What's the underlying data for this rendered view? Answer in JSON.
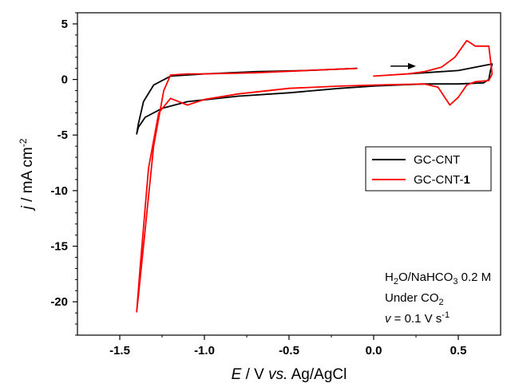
{
  "chart_data": {
    "type": "line",
    "xlim": [
      -1.75,
      0.75
    ],
    "ylim": [
      -23,
      6
    ],
    "x_ticks": [
      -1.5,
      -1.0,
      -0.5,
      0.0,
      0.5
    ],
    "x_tick_labels": [
      "-1.5",
      "-1.0",
      "-0.5",
      "0.0",
      "0.5"
    ],
    "y_ticks": [
      5,
      0,
      -5,
      -10,
      -15,
      -20
    ],
    "y_tick_labels": [
      "5",
      "0",
      "-5",
      "-10",
      "-15",
      "-20"
    ],
    "xlabel": {
      "var": "E",
      "unit": " / V ",
      "vs": "vs.",
      "ref": " Ag/AgCl"
    },
    "ylabel": {
      "var": "j",
      "unit": " / mA cm",
      "sup": "-2"
    },
    "legend": {
      "placement": "right",
      "entries": [
        {
          "label": "GC-CNT",
          "bold_suffix": "",
          "color": "#000000"
        },
        {
          "label": "GC-CNT-",
          "bold_suffix": "1",
          "color": "#ff0000"
        }
      ]
    },
    "annotations": {
      "line1_a": "H",
      "line1_sub1": "2",
      "line1_b": "O/NaHCO",
      "line1_sub2": "3",
      "line1_c": " 0.2 M",
      "line2_a": "Under CO",
      "line2_sub": "2",
      "line3_var": "v",
      "line3_b": " = 0.1 V s",
      "line3_sup": "-1"
    },
    "scan_arrow": {
      "x_start": 0.1,
      "x_end": 0.25,
      "y": 1.2
    },
    "series": [
      {
        "name": "GC-CNT",
        "color": "#000000",
        "x": [
          -0.1,
          -0.4,
          -0.7,
          -1.0,
          -1.2,
          -1.3,
          -1.36,
          -1.39,
          -1.4,
          -1.39,
          -1.35,
          -1.25,
          -1.1,
          -0.8,
          -0.5,
          -0.2,
          0.0,
          0.3,
          0.5,
          0.65,
          0.68,
          0.69,
          0.7,
          0.5,
          0.3,
          0.2
        ],
        "y": [
          1.0,
          0.8,
          0.7,
          0.5,
          0.3,
          -0.5,
          -2.0,
          -4.0,
          -4.9,
          -4.3,
          -3.4,
          -2.6,
          -2.0,
          -1.5,
          -1.2,
          -0.8,
          -0.6,
          -0.4,
          -0.4,
          -0.3,
          0.0,
          0.8,
          1.4,
          0.8,
          0.6,
          0.5
        ]
      },
      {
        "name": "GC-CNT-1",
        "color": "#ff0000",
        "x": [
          -0.1,
          -0.4,
          -0.7,
          -1.0,
          -1.1,
          -1.2,
          -1.24,
          -1.3,
          -1.36,
          -1.39,
          -1.4,
          -1.38,
          -1.33,
          -1.27,
          -1.2,
          -1.1,
          -1.0,
          -0.8,
          -0.5,
          -0.2,
          0.0,
          0.3,
          0.38,
          0.45,
          0.5,
          0.55,
          0.6,
          0.68,
          0.7,
          0.68,
          0.6,
          0.55,
          0.48,
          0.4,
          0.3,
          0.2,
          0.0
        ],
        "y": [
          1.0,
          0.8,
          0.6,
          0.5,
          0.5,
          0.4,
          -1.0,
          -6.0,
          -15.0,
          -19.5,
          -20.9,
          -17.0,
          -8.0,
          -3.0,
          -1.7,
          -2.3,
          -1.8,
          -1.3,
          -0.8,
          -0.6,
          -0.5,
          -0.4,
          -0.7,
          -2.3,
          -1.6,
          -0.5,
          -0.2,
          -0.1,
          0.5,
          3.0,
          3.0,
          3.5,
          2.0,
          1.1,
          0.7,
          0.5,
          0.3
        ]
      }
    ]
  }
}
